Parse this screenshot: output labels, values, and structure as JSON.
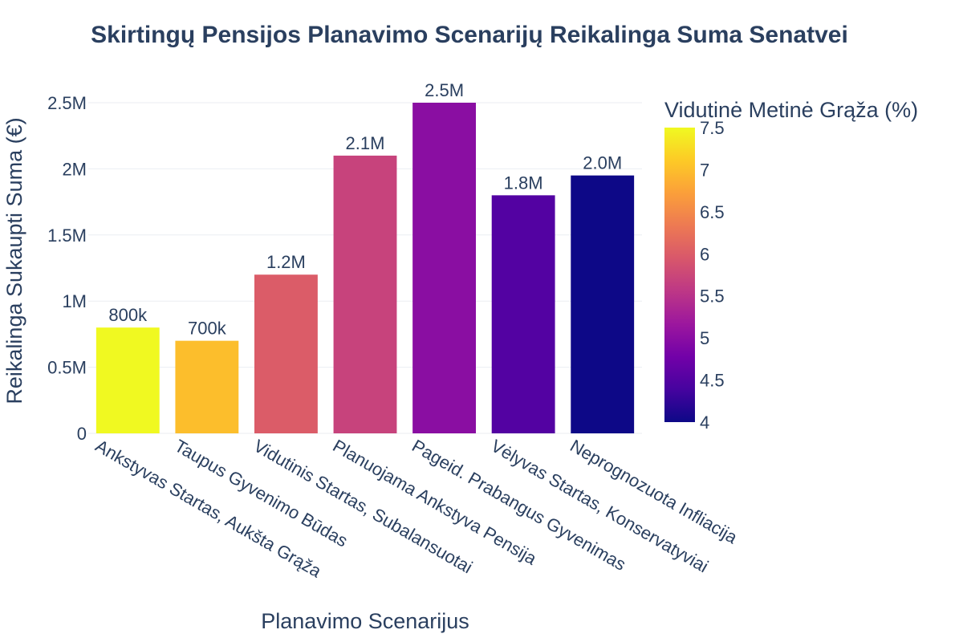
{
  "chart_data": {
    "type": "bar",
    "title": "Skirtingų Pensijos Planavimo Scenarijų Reikalinga Suma Senatvei",
    "xlabel": "Planavimo Scenarijus",
    "ylabel": "Reikalinga Sukaupti Suma (€)",
    "ylim": [
      0,
      2500000
    ],
    "yticks": [
      {
        "value": 0,
        "label": "0"
      },
      {
        "value": 500000,
        "label": "0.5M"
      },
      {
        "value": 1000000,
        "label": "1M"
      },
      {
        "value": 1500000,
        "label": "1.5M"
      },
      {
        "value": 2000000,
        "label": "2M"
      },
      {
        "value": 2500000,
        "label": "2.5M"
      }
    ],
    "grid": true,
    "categories": [
      "Ankstyvas Startas, Aukšta Grąža",
      "Taupus Gyvenimo Būdas",
      "Vidutinis Startas, Subalansuotai",
      "Planuojama Ankstyva Pensija",
      "Pageid. Prabangus Gyvenimas",
      "Vėlyvas Startas, Konservatyviai",
      "Neprognozuota Infliacija"
    ],
    "values": [
      800000,
      700000,
      1200000,
      2100000,
      2500000,
      1800000,
      1950000
    ],
    "value_labels": [
      "800k",
      "700k",
      "1.2M",
      "2.1M",
      "2.5M",
      "1.8M",
      "2.0M"
    ],
    "color_values": [
      7.5,
      7.0,
      6.0,
      5.7,
      5.0,
      4.5,
      4.0
    ],
    "colorbar": {
      "title": "Vidutinė Metinė Grąža (%)",
      "range": [
        4,
        7.5
      ],
      "ticks": [
        "4",
        "4.5",
        "5",
        "5.5",
        "6",
        "6.5",
        "7",
        "7.5"
      ],
      "colorscale": "plasma",
      "placement": "right"
    }
  }
}
